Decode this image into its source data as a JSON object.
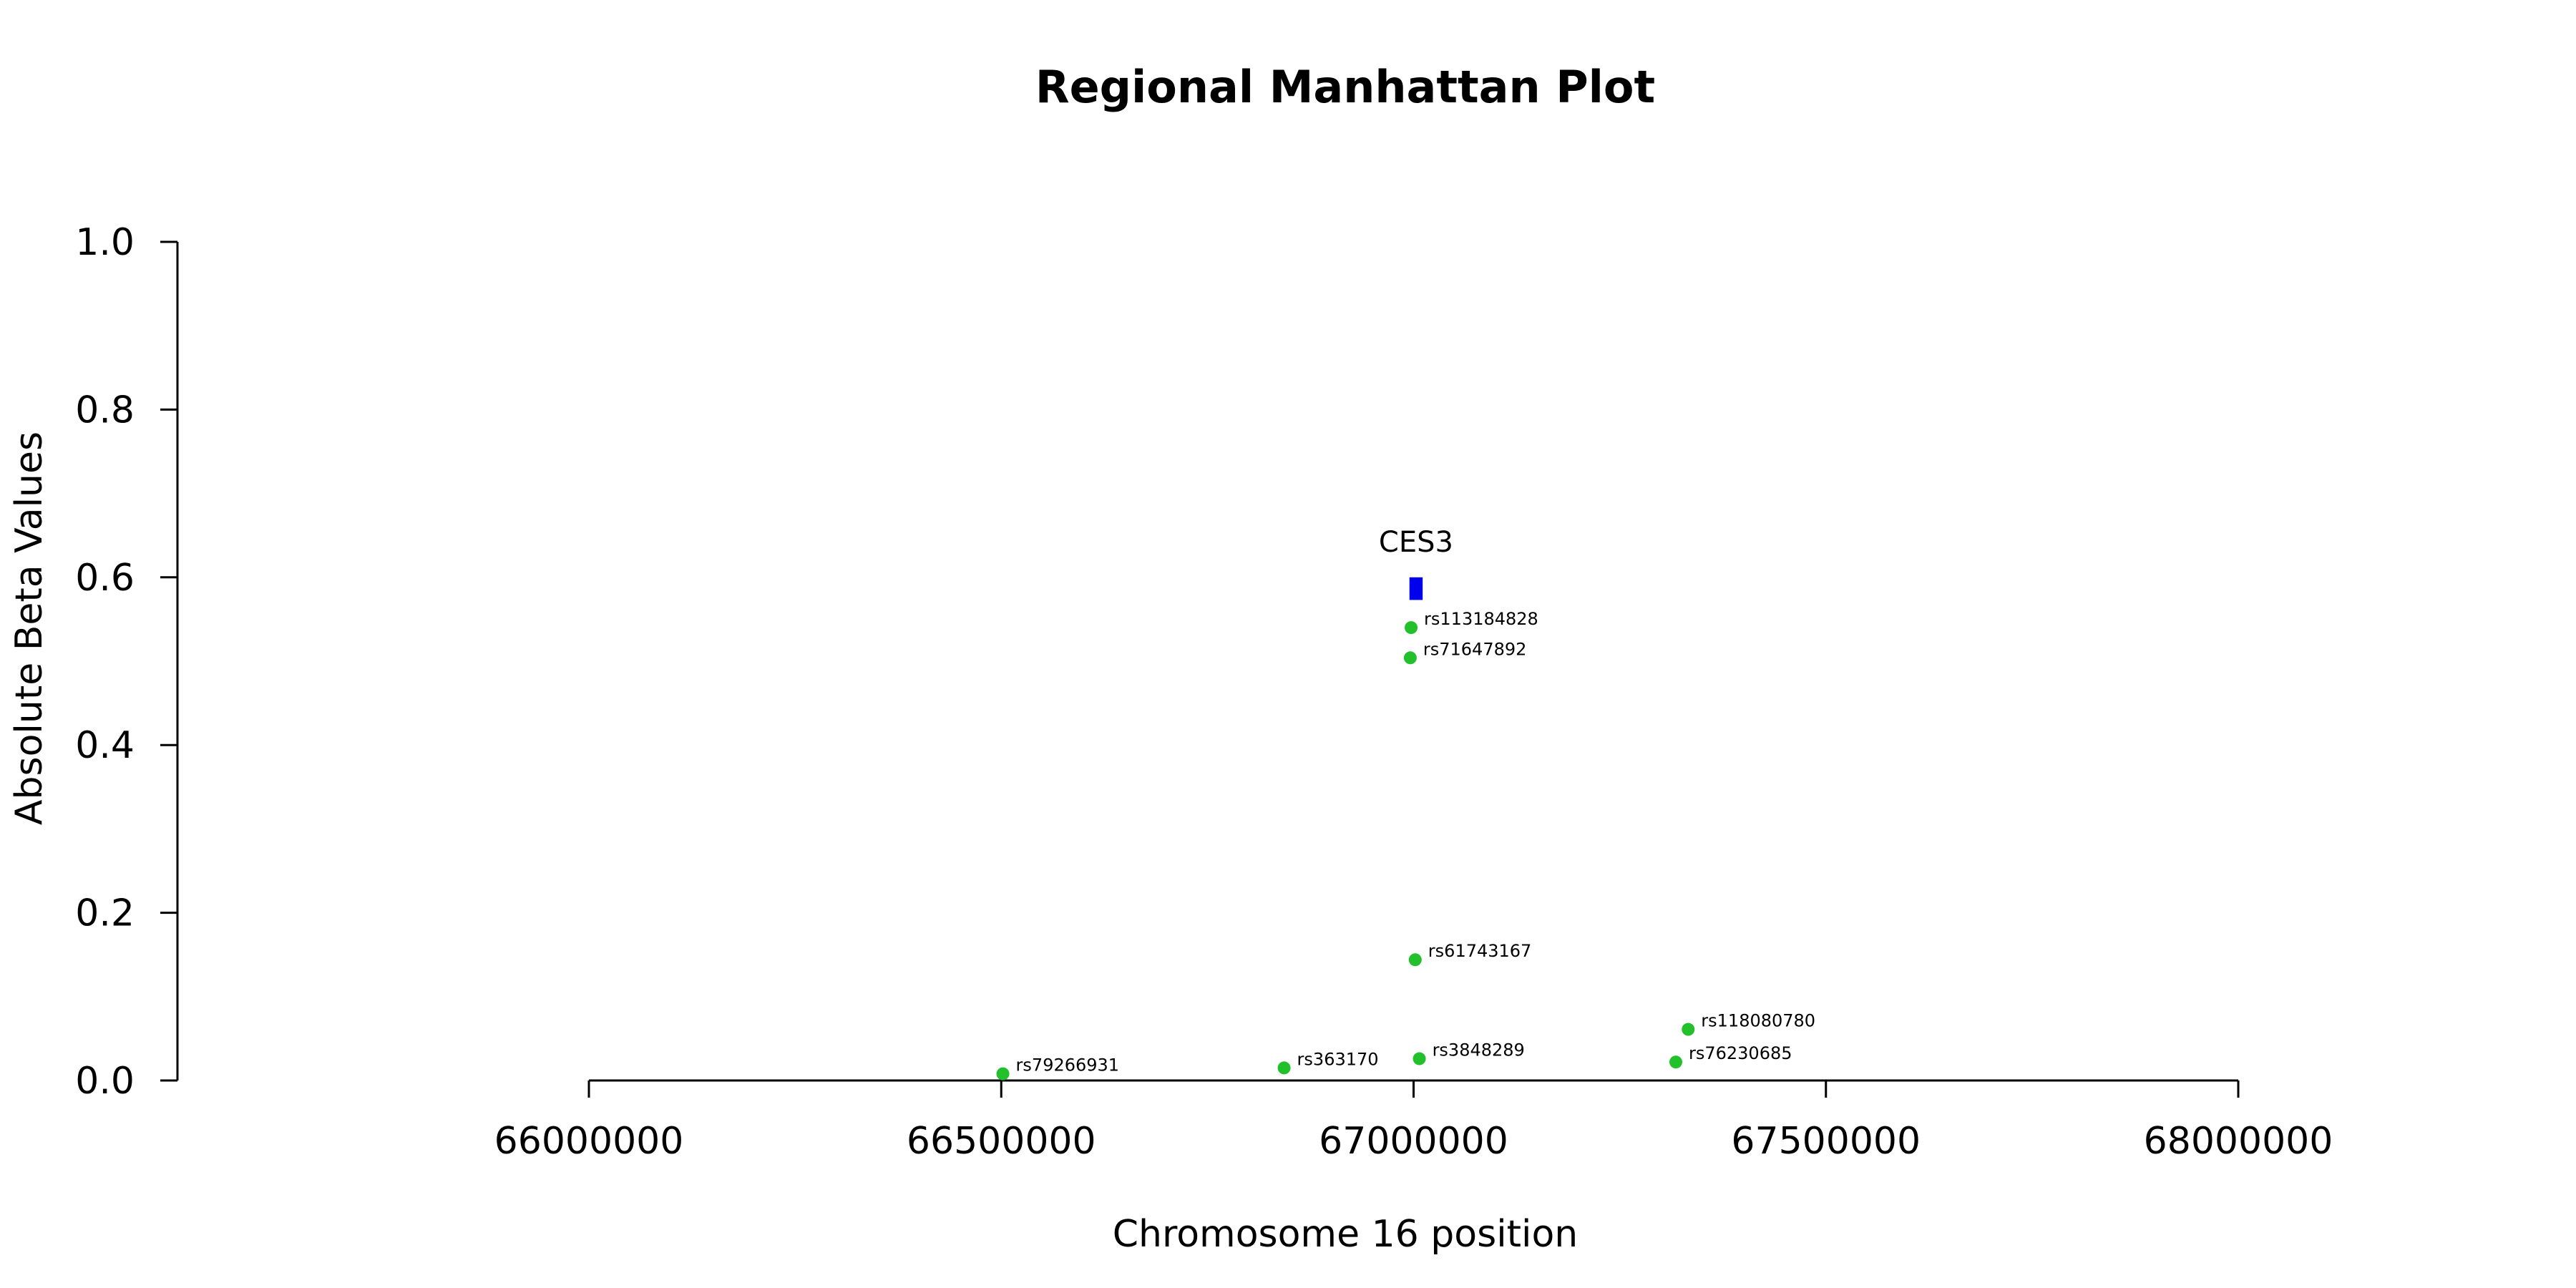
{
  "chart_data": {
    "type": "scatter",
    "title": "Regional Manhattan Plot",
    "xlabel": "Chromosome 16 position",
    "ylabel": "Absolute Beta Values",
    "xlim": [
      66000000,
      68000000
    ],
    "ylim": [
      0,
      1.0
    ],
    "xticks": [
      66000000,
      66500000,
      67000000,
      67500000,
      68000000
    ],
    "yticks": [
      0.0,
      0.2,
      0.4,
      0.6,
      0.8,
      1.0
    ],
    "xtick_labels": [
      "66000000",
      "66500000",
      "67000000",
      "67500000",
      "68000000"
    ],
    "ytick_labels": [
      "0.0",
      "0.2",
      "0.4",
      "0.6",
      "0.8",
      "1.0"
    ],
    "grid": false,
    "point_color": "#22c02a",
    "points": [
      {
        "label": "rs113184828",
        "x": 66997000,
        "y": 0.54
      },
      {
        "label": "rs71647892",
        "x": 66996000,
        "y": 0.504
      },
      {
        "label": "rs61743167",
        "x": 67002000,
        "y": 0.144
      },
      {
        "label": "rs118080780",
        "x": 67333000,
        "y": 0.061
      },
      {
        "label": "rs3848289",
        "x": 67007000,
        "y": 0.026
      },
      {
        "label": "rs76230685",
        "x": 67318000,
        "y": 0.022
      },
      {
        "label": "rs363170",
        "x": 66843000,
        "y": 0.015
      },
      {
        "label": "rs79266931",
        "x": 66502000,
        "y": 0.008
      }
    ],
    "genes": [
      {
        "name": "CES3",
        "start": 66995000,
        "end": 67011000,
        "y_low": 0.573,
        "y_high": 0.6,
        "color": "#0000ee"
      }
    ]
  }
}
